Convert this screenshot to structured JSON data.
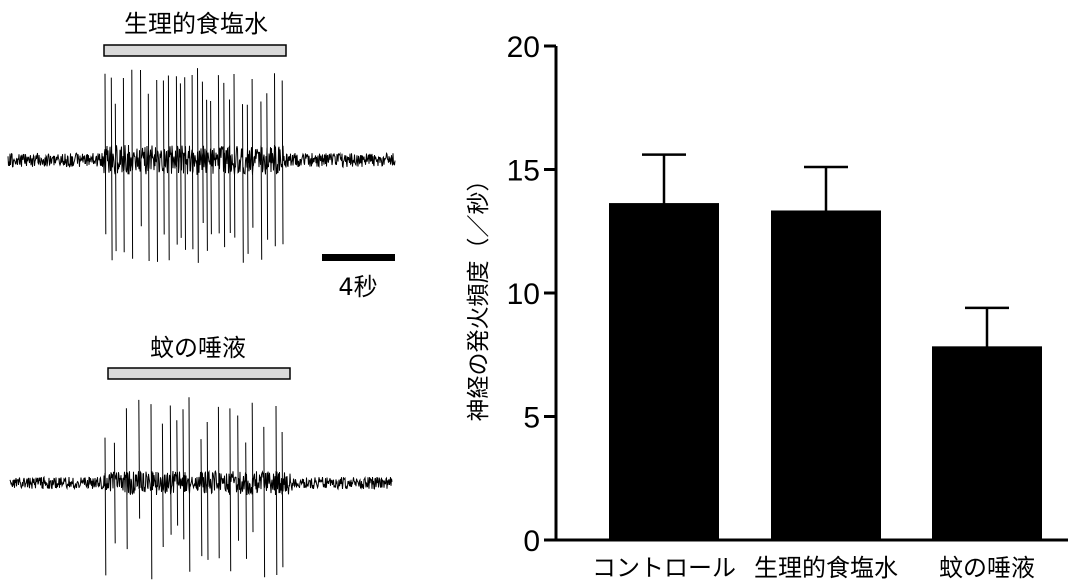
{
  "traces": {
    "top_label": "生理的食塩水",
    "bottom_label": "蚊の唾液",
    "scale_bar_label": "4秒",
    "bar_color": "#d9d9d9"
  },
  "chart_data": {
    "type": "bar",
    "categories": [
      "コントロール",
      "生理的食塩水",
      "蚊の唾液"
    ],
    "values": [
      13.6,
      13.3,
      7.8
    ],
    "errors": [
      2.0,
      1.8,
      1.6
    ],
    "title": "",
    "xlabel": "",
    "ylabel": "神経の発火頻度（／秒）",
    "ylim": [
      0,
      20
    ],
    "yticks": [
      0,
      5,
      10,
      15,
      20
    ],
    "grid": false,
    "bar_color": "#000000"
  }
}
